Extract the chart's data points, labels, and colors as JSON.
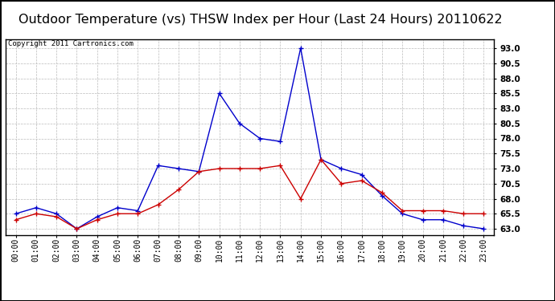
{
  "title": "Outdoor Temperature (vs) THSW Index per Hour (Last 24 Hours) 20110622",
  "copyright": "Copyright 2011 Cartronics.com",
  "hours": [
    "00:00",
    "01:00",
    "02:00",
    "03:00",
    "04:00",
    "05:00",
    "06:00",
    "07:00",
    "08:00",
    "09:00",
    "10:00",
    "11:00",
    "12:00",
    "13:00",
    "14:00",
    "15:00",
    "16:00",
    "17:00",
    "18:00",
    "19:00",
    "20:00",
    "21:00",
    "22:00",
    "23:00"
  ],
  "temp": [
    64.5,
    65.5,
    65.0,
    63.0,
    64.5,
    65.5,
    65.5,
    67.0,
    69.5,
    72.5,
    73.0,
    73.0,
    73.0,
    73.5,
    68.0,
    74.5,
    70.5,
    71.0,
    69.0,
    66.0,
    66.0,
    66.0,
    65.5,
    65.5
  ],
  "thsw": [
    65.5,
    66.5,
    65.5,
    63.0,
    65.0,
    66.5,
    66.0,
    73.5,
    73.0,
    72.5,
    85.5,
    80.5,
    78.0,
    77.5,
    93.0,
    74.5,
    73.0,
    72.0,
    68.5,
    65.5,
    64.5,
    64.5,
    63.5,
    63.0
  ],
  "temp_color": "#cc0000",
  "thsw_color": "#0000cc",
  "bg_color": "#ffffff",
  "plot_bg_color": "#ffffff",
  "grid_color": "#bbbbbb",
  "ylim_min": 62.0,
  "ylim_max": 94.5,
  "yticks": [
    63.0,
    65.5,
    68.0,
    70.5,
    73.0,
    75.5,
    78.0,
    80.5,
    83.0,
    85.5,
    88.0,
    90.5,
    93.0
  ],
  "title_fontsize": 11.5,
  "tick_fontsize": 7.0,
  "copyright_fontsize": 6.5
}
